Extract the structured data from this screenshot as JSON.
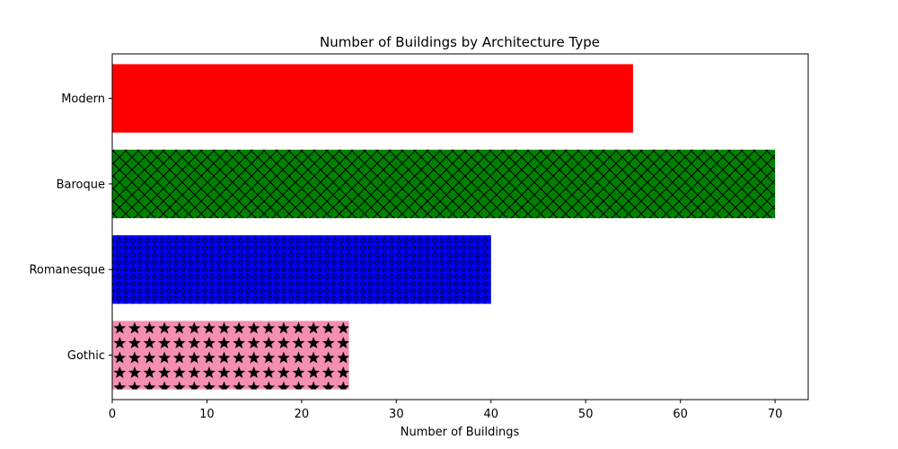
{
  "chart_data": {
    "type": "bar",
    "orientation": "horizontal",
    "title": "Number of Buildings by Architecture Type",
    "xlabel": "Number of Buildings",
    "ylabel": "",
    "categories": [
      "Gothic",
      "Romanesque",
      "Baroque",
      "Modern"
    ],
    "values": [
      25,
      40,
      70,
      55
    ],
    "colors": [
      "#f48fb1",
      "#0000ff",
      "#008000",
      "#ff0000"
    ],
    "hatches": [
      "stars",
      "dots",
      "crosshatch",
      "none"
    ],
    "xlim": [
      0,
      73.5
    ],
    "xticks": [
      0,
      10,
      20,
      30,
      40,
      50,
      60,
      70
    ],
    "grid": false
  }
}
